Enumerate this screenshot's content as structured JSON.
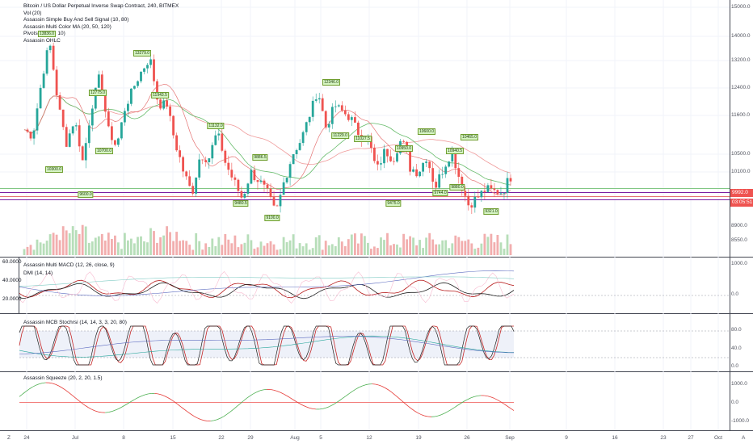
{
  "legend": {
    "title": "Bitcoin / US Dollar Perpetual Inverse Swap Contract, 240, BITMEX",
    "lines": [
      "Vol (20)",
      "Assassin Simple Buy And Sell Signal (10, 80)",
      "Assassin Multi Color MA (20, 50, 120)",
      "Pivots HL (10, 10)",
      "Assassin OHLC"
    ]
  },
  "price_axis": [
    "15000.0",
    "14000.0",
    "13200.0",
    "12400.0",
    "11600.0",
    "10500.0",
    "10100.0",
    "8900.0",
    "8550.0"
  ],
  "current_price_tag": "9992.0",
  "countdown_tag": "03:05:51",
  "x_axis": [
    "24",
    "Jul",
    "8",
    "15",
    "22",
    "29",
    "Aug",
    "5",
    "12",
    "19",
    "26",
    "Sep",
    "9",
    "16",
    "23",
    "27",
    "Oct"
  ],
  "corner_left": "Z",
  "corner_right": "A",
  "pivots": [
    "13836.0",
    "13279.0",
    "12775.0",
    "11943.5",
    "11132.0",
    "10700.0",
    "10300.0",
    "9600.0",
    "9886.5",
    "9480.5",
    "9100.0",
    "12346.0",
    "11229.0",
    "11027.5",
    "10950.0",
    "10600.0",
    "9475.0",
    "10940.5",
    "10465.0",
    "10605.0",
    "9744.0",
    "9880.0",
    "9321.0"
  ],
  "panes": {
    "macd": {
      "label_top": "Assassin Multi MACD (12, 26, close, 9)",
      "label_bottom": "DMI (14, 14)",
      "left_axis": [
        "60.0000",
        "40.0000",
        "20.0000"
      ],
      "right_axis": [
        "1000.0",
        "0.0"
      ]
    },
    "stoch": {
      "label": "Assassin MCB Stochrsi (14, 14, 3, 3, 20, 80)",
      "right_axis": [
        "80.0",
        "40.0",
        "0.0"
      ]
    },
    "squeeze": {
      "label": "Assassin Squeeze (20, 2, 20, 1.5)",
      "right_axis": [
        "1000.0",
        "0.0",
        "-1000.0"
      ]
    }
  },
  "colors": {
    "up": "#26a69a",
    "down": "#ef5350",
    "ma_fast": "#ef9a9a",
    "ma_mid": "#4caf50",
    "ma_slow": "#e57373",
    "price_tag": "#ef5350",
    "countdown_tag": "#ef5350"
  },
  "chart_data": {
    "type": "candlestick",
    "title": "Bitcoin / US Dollar Perpetual Inverse Swap Contract, 240, BITMEX",
    "price_series": [
      {
        "t": 0,
        "p": 11200
      },
      {
        "t": 1,
        "p": 11000
      },
      {
        "t": 2,
        "p": 12500
      },
      {
        "t": 3,
        "p": 13836
      },
      {
        "t": 4,
        "p": 12000
      },
      {
        "t": 5,
        "p": 10800
      },
      {
        "t": 6,
        "p": 11500
      },
      {
        "t": 7,
        "p": 10300
      },
      {
        "t": 8,
        "p": 11800
      },
      {
        "t": 9,
        "p": 12775
      },
      {
        "t": 10,
        "p": 11200
      },
      {
        "t": 11,
        "p": 10700
      },
      {
        "t": 12,
        "p": 11800
      },
      {
        "t": 13,
        "p": 12400
      },
      {
        "t": 14,
        "p": 12900
      },
      {
        "t": 15,
        "p": 13279
      },
      {
        "t": 16,
        "p": 11900
      },
      {
        "t": 17,
        "p": 11943
      },
      {
        "t": 18,
        "p": 10800
      },
      {
        "t": 19,
        "p": 10100
      },
      {
        "t": 20,
        "p": 9600
      },
      {
        "t": 21,
        "p": 10500
      },
      {
        "t": 22,
        "p": 10400
      },
      {
        "t": 23,
        "p": 11132
      },
      {
        "t": 24,
        "p": 10300
      },
      {
        "t": 25,
        "p": 9886
      },
      {
        "t": 26,
        "p": 9480
      },
      {
        "t": 27,
        "p": 10100
      },
      {
        "t": 28,
        "p": 9900
      },
      {
        "t": 29,
        "p": 9600
      },
      {
        "t": 30,
        "p": 9100
      },
      {
        "t": 31,
        "p": 9900
      },
      {
        "t": 32,
        "p": 10500
      },
      {
        "t": 33,
        "p": 10900
      },
      {
        "t": 34,
        "p": 11600
      },
      {
        "t": 35,
        "p": 12346
      },
      {
        "t": 36,
        "p": 11229
      },
      {
        "t": 37,
        "p": 11900
      },
      {
        "t": 38,
        "p": 11700
      },
      {
        "t": 39,
        "p": 11500
      },
      {
        "t": 40,
        "p": 11027
      },
      {
        "t": 41,
        "p": 10950
      },
      {
        "t": 42,
        "p": 10100
      },
      {
        "t": 43,
        "p": 10600
      },
      {
        "t": 44,
        "p": 10400
      },
      {
        "t": 45,
        "p": 10940
      },
      {
        "t": 46,
        "p": 10200
      },
      {
        "t": 47,
        "p": 10100
      },
      {
        "t": 48,
        "p": 10465
      },
      {
        "t": 49,
        "p": 9744
      },
      {
        "t": 50,
        "p": 10200
      },
      {
        "t": 51,
        "p": 10605
      },
      {
        "t": 52,
        "p": 9880
      },
      {
        "t": 53,
        "p": 9321
      },
      {
        "t": 54,
        "p": 9500
      },
      {
        "t": 55,
        "p": 9700
      },
      {
        "t": 56,
        "p": 9650
      },
      {
        "t": 57,
        "p": 9650
      },
      {
        "t": 58,
        "p": 9992
      }
    ],
    "y_ticks": [
      15000,
      14000,
      13200,
      12400,
      11600,
      10500,
      10100,
      8900,
      8550
    ],
    "x_ticks": [
      "24",
      "Jul",
      "8",
      "15",
      "22",
      "29",
      "Aug",
      "5",
      "12",
      "19",
      "26",
      "Sep",
      "9",
      "16",
      "23",
      "27",
      "Oct"
    ]
  }
}
